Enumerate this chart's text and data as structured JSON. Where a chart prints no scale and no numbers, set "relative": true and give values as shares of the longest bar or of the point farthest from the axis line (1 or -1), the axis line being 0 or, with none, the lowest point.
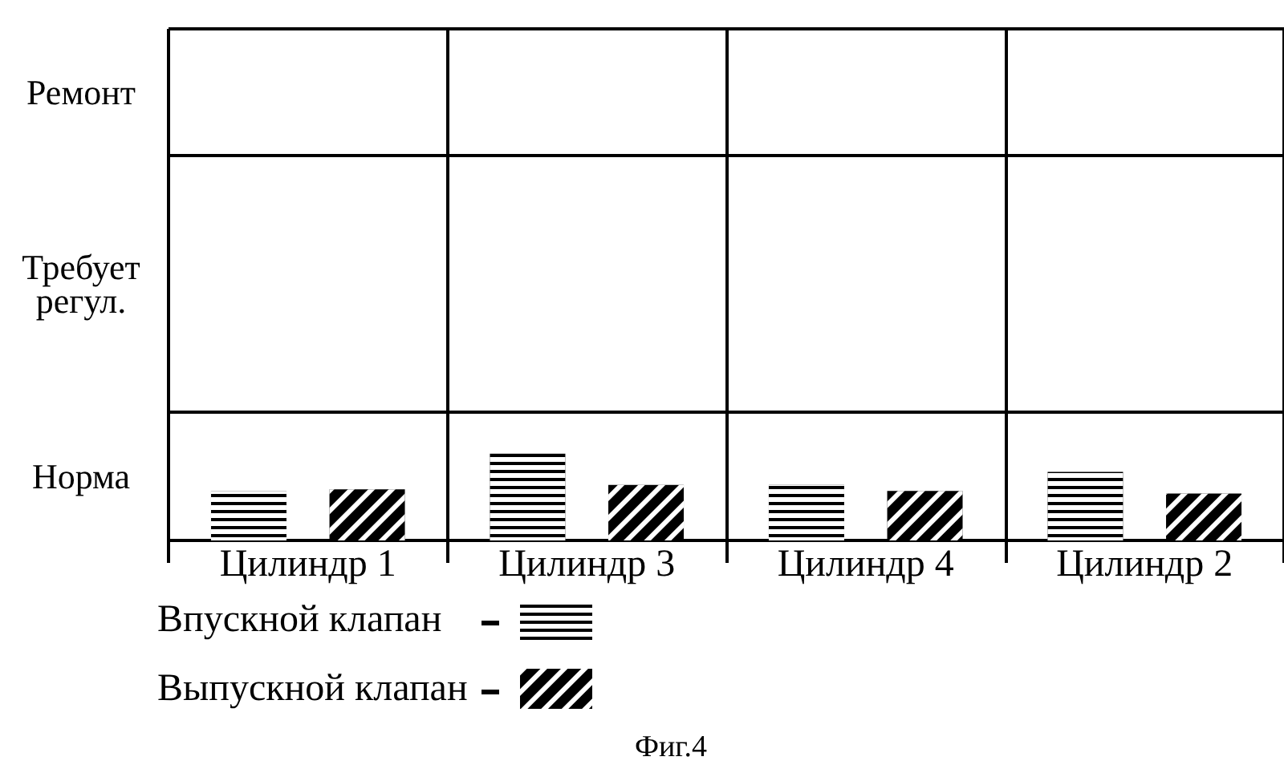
{
  "chart_data": {
    "type": "bar",
    "categories": [
      "Цилиндр 1",
      "Цилиндр 3",
      "Цилиндр 4",
      "Цилиндр 2"
    ],
    "relative": true,
    "series": [
      {
        "name": "Впускной клапан",
        "color": "#000000",
        "values": [
          0.57,
          1,
          0.64,
          0.79
        ]
      },
      {
        "name": "Выпускной клапан",
        "color": "#000000",
        "values": [
          0.59,
          0.64,
          0.57,
          0.54
        ]
      }
    ],
    "ref_lines": [
      {
        "axis": "y",
        "value": 1.48
      },
      {
        "axis": "y",
        "value": 4.44
      },
      {
        "axis": "y",
        "value": 5.9
      }
    ],
    "grid": "x",
    "legend": "bottom left",
    "annotations": [
      "Ремонт",
      "Требует регул.",
      "Норма",
      "Фиг.4"
    ]
  }
}
